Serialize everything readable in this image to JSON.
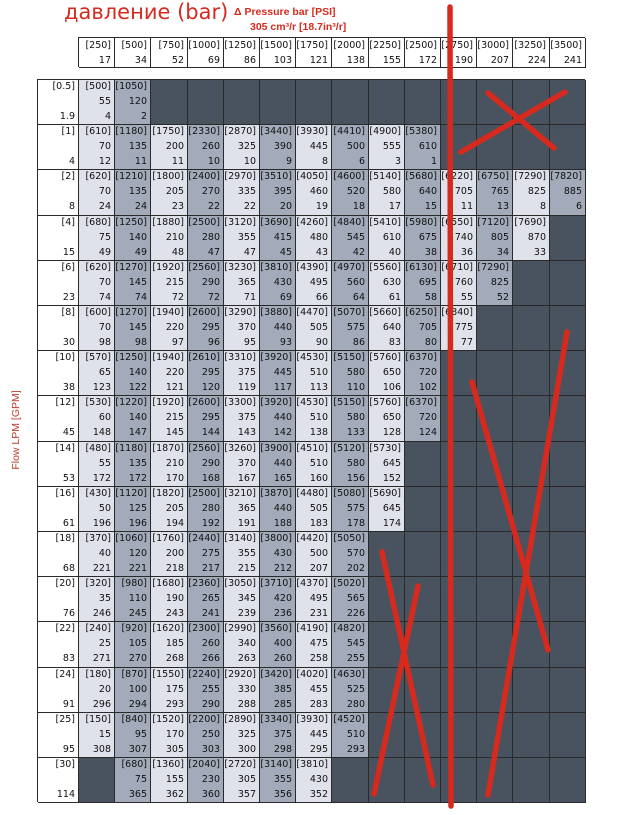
{
  "title": {
    "main": "давление (bar)",
    "sub": "Δ Pressure bar [PSI]",
    "unit": "305 cm³/r [18.7in³/r]"
  },
  "ylabel": "Flow LPM [GPM]",
  "header": {
    "psi": [
      "[250]",
      "[500]",
      "[750]",
      "[1000]",
      "[1250]",
      "[1500]",
      "[1750]",
      "[2000]",
      "[2250]",
      "[2500]",
      "[2750]",
      "[3000]",
      "[3250]",
      "[3500]"
    ],
    "bar": [
      "17",
      "34",
      "52",
      "69",
      "86",
      "103",
      "121",
      "138",
      "155",
      "172",
      "190",
      "207",
      "224",
      "241"
    ]
  },
  "rows": [
    {
      "lpm": "[0.5]",
      "gpm": "1.9",
      "cells": [
        [
          "[500]",
          "55",
          "4"
        ],
        [
          "[1050]",
          "120",
          "2"
        ],
        null,
        null,
        null,
        null,
        null,
        null,
        null,
        null,
        null,
        null,
        null,
        null
      ]
    },
    {
      "lpm": "[1]",
      "gpm": "4",
      "cells": [
        [
          "[610]",
          "70",
          "12"
        ],
        [
          "[1180]",
          "135",
          "11"
        ],
        [
          "[1750]",
          "200",
          "11"
        ],
        [
          "[2330]",
          "260",
          "10"
        ],
        [
          "[2870]",
          "325",
          "10"
        ],
        [
          "[3440]",
          "390",
          "9"
        ],
        [
          "[3930]",
          "445",
          "8"
        ],
        [
          "[4410]",
          "500",
          "6"
        ],
        [
          "[4900]",
          "555",
          "3"
        ],
        [
          "[5380]",
          "610",
          "1"
        ],
        null,
        null,
        null,
        null
      ]
    },
    {
      "lpm": "[2]",
      "gpm": "8",
      "cells": [
        [
          "[620]",
          "70",
          "24"
        ],
        [
          "[1210]",
          "135",
          "24"
        ],
        [
          "[1800]",
          "205",
          "23"
        ],
        [
          "[2400]",
          "270",
          "22"
        ],
        [
          "[2970]",
          "335",
          "22"
        ],
        [
          "[3510]",
          "395",
          "20"
        ],
        [
          "[4050]",
          "460",
          "19"
        ],
        [
          "[4600]",
          "520",
          "18"
        ],
        [
          "[5140]",
          "580",
          "17"
        ],
        [
          "[5680]",
          "640",
          "15"
        ],
        [
          "[6220]",
          "705",
          "11"
        ],
        [
          "[6750]",
          "765",
          "13"
        ],
        [
          "[7290]",
          "825",
          "8"
        ],
        [
          "[7820]",
          "885",
          "6"
        ]
      ]
    },
    {
      "lpm": "[4]",
      "gpm": "15",
      "cells": [
        [
          "[680]",
          "75",
          "49"
        ],
        [
          "[1250]",
          "140",
          "49"
        ],
        [
          "[1880]",
          "210",
          "48"
        ],
        [
          "[2500]",
          "280",
          "47"
        ],
        [
          "[3120]",
          "355",
          "47"
        ],
        [
          "[3690]",
          "415",
          "45"
        ],
        [
          "[4260]",
          "480",
          "43"
        ],
        [
          "[4840]",
          "545",
          "42"
        ],
        [
          "[5410]",
          "610",
          "40"
        ],
        [
          "[5980]",
          "675",
          "38"
        ],
        [
          "[6550]",
          "740",
          "36"
        ],
        [
          "[7120]",
          "805",
          "34"
        ],
        [
          "[7690]",
          "870",
          "33"
        ],
        null
      ]
    },
    {
      "lpm": "[6]",
      "gpm": "23",
      "cells": [
        [
          "[620]",
          "70",
          "74"
        ],
        [
          "[1270]",
          "145",
          "74"
        ],
        [
          "[1920]",
          "215",
          "72"
        ],
        [
          "[2560]",
          "290",
          "72"
        ],
        [
          "[3230]",
          "365",
          "71"
        ],
        [
          "[3810]",
          "430",
          "69"
        ],
        [
          "[4390]",
          "495",
          "66"
        ],
        [
          "[4970]",
          "560",
          "64"
        ],
        [
          "[5560]",
          "630",
          "61"
        ],
        [
          "[6130]",
          "695",
          "58"
        ],
        [
          "[6710]",
          "760",
          "55"
        ],
        [
          "[7290]",
          "825",
          "52"
        ],
        null,
        null
      ]
    },
    {
      "lpm": "[8]",
      "gpm": "30",
      "cells": [
        [
          "[600]",
          "70",
          "98"
        ],
        [
          "[1270]",
          "145",
          "98"
        ],
        [
          "[1940]",
          "220",
          "97"
        ],
        [
          "[2600]",
          "295",
          "96"
        ],
        [
          "[3290]",
          "370",
          "95"
        ],
        [
          "[3880]",
          "440",
          "93"
        ],
        [
          "[4470]",
          "505",
          "90"
        ],
        [
          "[5070]",
          "575",
          "86"
        ],
        [
          "[5660]",
          "640",
          "83"
        ],
        [
          "[6250]",
          "705",
          "80"
        ],
        [
          "[6840]",
          "775",
          "77"
        ],
        null,
        null,
        null
      ]
    },
    {
      "lpm": "[10]",
      "gpm": "38",
      "cells": [
        [
          "[570]",
          "65",
          "123"
        ],
        [
          "[1250]",
          "140",
          "122"
        ],
        [
          "[1940]",
          "220",
          "121"
        ],
        [
          "[2610]",
          "295",
          "120"
        ],
        [
          "[3310]",
          "375",
          "119"
        ],
        [
          "[3920]",
          "445",
          "117"
        ],
        [
          "[4530]",
          "510",
          "113"
        ],
        [
          "[5150]",
          "580",
          "110"
        ],
        [
          "[5760]",
          "650",
          "106"
        ],
        [
          "[6370]",
          "720",
          "102"
        ],
        null,
        null,
        null,
        null
      ]
    },
    {
      "lpm": "[12]",
      "gpm": "45",
      "cells": [
        [
          "[530]",
          "60",
          "148"
        ],
        [
          "[1220]",
          "140",
          "147"
        ],
        [
          "[1920]",
          "215",
          "145"
        ],
        [
          "[2600]",
          "295",
          "144"
        ],
        [
          "[3300]",
          "375",
          "143"
        ],
        [
          "[3920]",
          "440",
          "142"
        ],
        [
          "[4530]",
          "510",
          "138"
        ],
        [
          "[5150]",
          "580",
          "133"
        ],
        [
          "[5760]",
          "650",
          "128"
        ],
        [
          "[6370]",
          "720",
          "124"
        ],
        null,
        null,
        null,
        null
      ]
    },
    {
      "lpm": "[14]",
      "gpm": "53",
      "cells": [
        [
          "[480]",
          "55",
          "172"
        ],
        [
          "[1180]",
          "135",
          "172"
        ],
        [
          "[1870]",
          "210",
          "170"
        ],
        [
          "[2560]",
          "290",
          "168"
        ],
        [
          "[3260]",
          "370",
          "167"
        ],
        [
          "[3900]",
          "440",
          "165"
        ],
        [
          "[4510]",
          "510",
          "160"
        ],
        [
          "[5120]",
          "580",
          "156"
        ],
        [
          "[5730]",
          "645",
          "152"
        ],
        null,
        null,
        null,
        null,
        null
      ]
    },
    {
      "lpm": "[16]",
      "gpm": "61",
      "cells": [
        [
          "[430]",
          "50",
          "196"
        ],
        [
          "[1120]",
          "125",
          "196"
        ],
        [
          "[1820]",
          "205",
          "194"
        ],
        [
          "[2500]",
          "280",
          "192"
        ],
        [
          "[3210]",
          "365",
          "191"
        ],
        [
          "[3870]",
          "440",
          "188"
        ],
        [
          "[4480]",
          "505",
          "183"
        ],
        [
          "[5080]",
          "575",
          "178"
        ],
        [
          "[5690]",
          "645",
          "174"
        ],
        null,
        null,
        null,
        null,
        null
      ]
    },
    {
      "lpm": "[18]",
      "gpm": "68",
      "cells": [
        [
          "[370]",
          "40",
          "221"
        ],
        [
          "[1060]",
          "120",
          "221"
        ],
        [
          "[1760]",
          "200",
          "218"
        ],
        [
          "[2440]",
          "275",
          "217"
        ],
        [
          "[3140]",
          "355",
          "215"
        ],
        [
          "[3800]",
          "430",
          "212"
        ],
        [
          "[4420]",
          "500",
          "207"
        ],
        [
          "[5050]",
          "570",
          "202"
        ],
        null,
        null,
        null,
        null,
        null,
        null
      ]
    },
    {
      "lpm": "[20]",
      "gpm": "76",
      "cells": [
        [
          "[320]",
          "35",
          "246"
        ],
        [
          "[980]",
          "110",
          "245"
        ],
        [
          "[1680]",
          "190",
          "243"
        ],
        [
          "[2360]",
          "265",
          "241"
        ],
        [
          "[3050]",
          "345",
          "239"
        ],
        [
          "[3710]",
          "420",
          "236"
        ],
        [
          "[4370]",
          "495",
          "231"
        ],
        [
          "[5020]",
          "565",
          "226"
        ],
        null,
        null,
        null,
        null,
        null,
        null
      ]
    },
    {
      "lpm": "[22]",
      "gpm": "83",
      "cells": [
        [
          "[240]",
          "25",
          "271"
        ],
        [
          "[920]",
          "105",
          "270"
        ],
        [
          "[1620]",
          "185",
          "268"
        ],
        [
          "[2300]",
          "260",
          "266"
        ],
        [
          "[2990]",
          "340",
          "263"
        ],
        [
          "[3560]",
          "400",
          "260"
        ],
        [
          "[4190]",
          "475",
          "258"
        ],
        [
          "[4820]",
          "545",
          "255"
        ],
        null,
        null,
        null,
        null,
        null,
        null
      ]
    },
    {
      "lpm": "[24]",
      "gpm": "91",
      "cells": [
        [
          "[180]",
          "20",
          "296"
        ],
        [
          "[870]",
          "100",
          "294"
        ],
        [
          "[1550]",
          "175",
          "293"
        ],
        [
          "[2240]",
          "255",
          "290"
        ],
        [
          "[2920]",
          "330",
          "288"
        ],
        [
          "[3420]",
          "385",
          "285"
        ],
        [
          "[4020]",
          "455",
          "283"
        ],
        [
          "[4630]",
          "525",
          "280"
        ],
        null,
        null,
        null,
        null,
        null,
        null
      ]
    },
    {
      "lpm": "[25]",
      "gpm": "95",
      "cells": [
        [
          "[150]",
          "15",
          "308"
        ],
        [
          "[840]",
          "95",
          "307"
        ],
        [
          "[1520]",
          "170",
          "305"
        ],
        [
          "[2200]",
          "250",
          "303"
        ],
        [
          "[2890]",
          "325",
          "300"
        ],
        [
          "[3340]",
          "375",
          "298"
        ],
        [
          "[3930]",
          "445",
          "295"
        ],
        [
          "[4520]",
          "510",
          "293"
        ],
        null,
        null,
        null,
        null,
        null,
        null
      ]
    },
    {
      "lpm": "[30]",
      "gpm": "114",
      "cells": [
        null,
        [
          "[680]",
          "75",
          "365"
        ],
        [
          "[1360]",
          "155",
          "362"
        ],
        [
          "[2040]",
          "230",
          "360"
        ],
        [
          "[2720]",
          "305",
          "357"
        ],
        [
          "[3140]",
          "355",
          "356"
        ],
        [
          "[3810]",
          "430",
          "352"
        ],
        null,
        null,
        null,
        null,
        null,
        null,
        null
      ]
    }
  ],
  "colors": {
    "annotation_red": "#d62a1e",
    "cell_light": "#dfe2ea",
    "cell_dark": "#a3abba",
    "cell_blank": "#49535f"
  }
}
